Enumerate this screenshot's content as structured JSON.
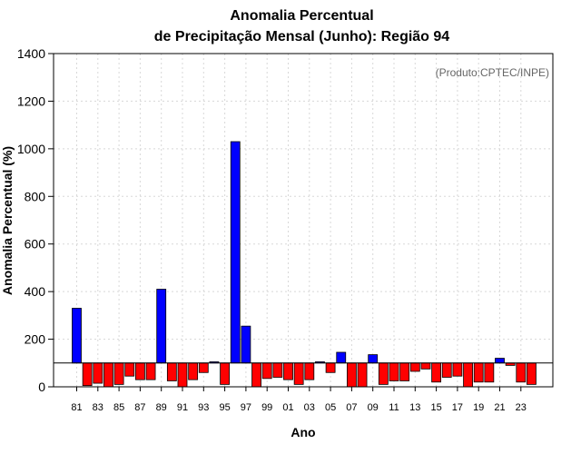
{
  "chart_data": {
    "type": "bar",
    "title_line1": "Anomalia Percentual",
    "title_line2": "de Precipitação Mensal (Junho): Região 94",
    "xlabel": "Ano",
    "ylabel": "Anomalia Percentual (%)",
    "annotation": "(Produto:CPTEC/INPE)",
    "ylim": [
      0,
      1400
    ],
    "baseline": 100,
    "yticks": [
      0,
      200,
      400,
      600,
      800,
      1000,
      1200,
      1400
    ],
    "ytick_labels": [
      "0",
      "200",
      "400",
      "600",
      "800",
      "1000",
      "1200",
      "1400"
    ],
    "xtick_labels": [
      "81",
      "83",
      "85",
      "87",
      "89",
      "91",
      "93",
      "95",
      "97",
      "99",
      "01",
      "03",
      "05",
      "07",
      "09",
      "11",
      "13",
      "15",
      "17",
      "19",
      "21",
      "23"
    ],
    "categories": [
      "1981",
      "1982",
      "1983",
      "1984",
      "1985",
      "1986",
      "1987",
      "1988",
      "1989",
      "1990",
      "1991",
      "1992",
      "1993",
      "1994",
      "1995",
      "1996",
      "1997",
      "1998",
      "1999",
      "2000",
      "2001",
      "2002",
      "2003",
      "2004",
      "2005",
      "2006",
      "2007",
      "2008",
      "2009",
      "2010",
      "2011",
      "2012",
      "2013",
      "2014",
      "2015",
      "2016",
      "2017",
      "2018",
      "2019",
      "2020",
      "2021",
      "2022",
      "2023",
      "2024"
    ],
    "values": [
      330,
      5,
      15,
      0,
      10,
      45,
      30,
      30,
      410,
      25,
      0,
      30,
      60,
      105,
      10,
      1030,
      255,
      0,
      35,
      40,
      30,
      10,
      30,
      105,
      60,
      145,
      0,
      0,
      135,
      10,
      25,
      25,
      65,
      75,
      20,
      40,
      45,
      0,
      20,
      20,
      120,
      90,
      20,
      10
    ],
    "colors": {
      "positive": "#0000ff",
      "negative": "#ff0000",
      "grid": "#d8d8d8"
    }
  }
}
